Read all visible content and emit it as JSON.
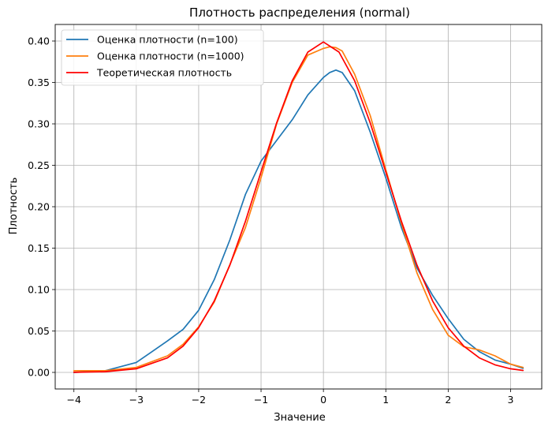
{
  "chart_data": {
    "type": "line",
    "title": "Плотность распределения (normal)",
    "xlabel": "Значение",
    "ylabel": "Плотность",
    "xlim": [
      -4.3,
      3.5
    ],
    "ylim": [
      -0.02,
      0.42
    ],
    "xticks": [
      -4,
      -3,
      -2,
      -1,
      0,
      1,
      2,
      3
    ],
    "yticks": [
      0.0,
      0.05,
      0.1,
      0.15,
      0.2,
      0.25,
      0.3,
      0.35,
      0.4
    ],
    "grid": true,
    "legend_position": "upper left",
    "series": [
      {
        "name": "Оценка плотности (n=100)",
        "color": "#1f77b4",
        "x": [
          -4.0,
          -3.5,
          -3.0,
          -2.75,
          -2.5,
          -2.25,
          -2.0,
          -1.75,
          -1.5,
          -1.25,
          -1.0,
          -0.75,
          -0.5,
          -0.25,
          0.0,
          0.1,
          0.2,
          0.3,
          0.5,
          0.75,
          1.0,
          1.25,
          1.5,
          1.75,
          2.0,
          2.25,
          2.5,
          2.75,
          3.0,
          3.2
        ],
        "y": [
          0.0,
          0.002,
          0.012,
          0.025,
          0.038,
          0.052,
          0.075,
          0.112,
          0.16,
          0.215,
          0.255,
          0.28,
          0.305,
          0.335,
          0.356,
          0.362,
          0.365,
          0.362,
          0.34,
          0.29,
          0.235,
          0.175,
          0.126,
          0.093,
          0.065,
          0.04,
          0.025,
          0.015,
          0.01,
          0.005
        ]
      },
      {
        "name": "Оценка плотности (n=1000)",
        "color": "#ff7f0e",
        "x": [
          -4.0,
          -3.5,
          -3.0,
          -2.5,
          -2.25,
          -2.0,
          -1.75,
          -1.5,
          -1.25,
          -1.0,
          -0.75,
          -0.5,
          -0.25,
          0.0,
          0.1,
          0.2,
          0.3,
          0.5,
          0.75,
          1.0,
          1.25,
          1.5,
          1.75,
          2.0,
          2.25,
          2.5,
          2.75,
          3.0,
          3.2
        ],
        "y": [
          0.002,
          0.002,
          0.006,
          0.02,
          0.034,
          0.055,
          0.085,
          0.13,
          0.175,
          0.235,
          0.3,
          0.35,
          0.383,
          0.391,
          0.393,
          0.392,
          0.388,
          0.36,
          0.31,
          0.245,
          0.18,
          0.12,
          0.076,
          0.045,
          0.031,
          0.027,
          0.02,
          0.01,
          0.006
        ]
      },
      {
        "name": "Теоретическая плотность",
        "color": "#ff0000",
        "x": [
          -4.0,
          -3.5,
          -3.0,
          -2.5,
          -2.25,
          -2.0,
          -1.75,
          -1.5,
          -1.25,
          -1.0,
          -0.75,
          -0.5,
          -0.25,
          0.0,
          0.25,
          0.5,
          0.75,
          1.0,
          1.25,
          1.5,
          1.75,
          2.0,
          2.25,
          2.5,
          2.75,
          3.0,
          3.2
        ],
        "y": [
          0.0001,
          0.0009,
          0.0044,
          0.0175,
          0.0317,
          0.054,
          0.0863,
          0.1295,
          0.1826,
          0.242,
          0.3011,
          0.3521,
          0.3867,
          0.3989,
          0.3867,
          0.3521,
          0.3011,
          0.242,
          0.1826,
          0.1295,
          0.0863,
          0.054,
          0.0317,
          0.0175,
          0.0091,
          0.0044,
          0.0024
        ]
      }
    ]
  }
}
